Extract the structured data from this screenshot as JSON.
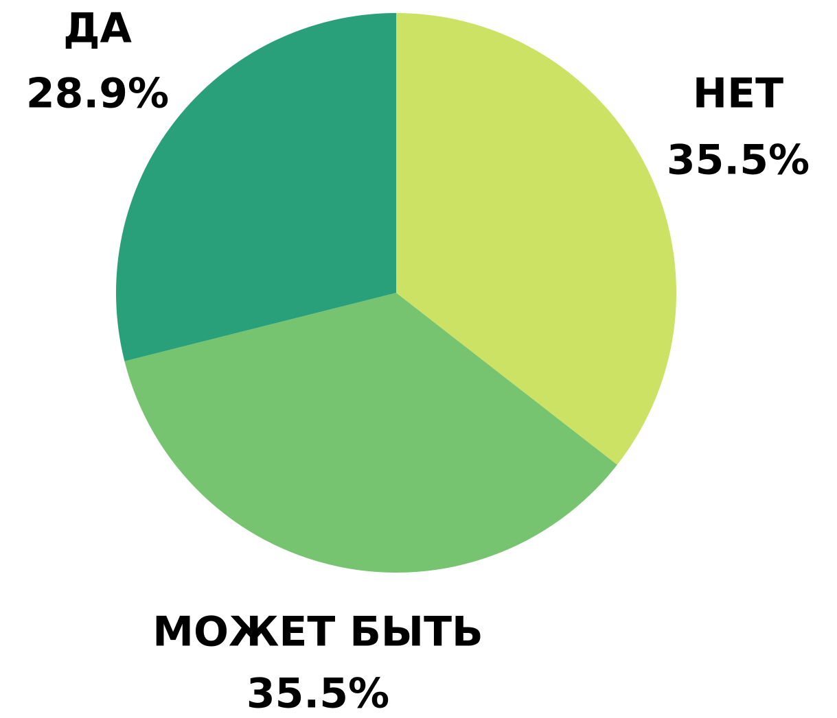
{
  "chart_data": {
    "type": "pie",
    "categories": [
      "НЕТ",
      "МОЖЕТ БЫТЬ",
      "ДА"
    ],
    "values": [
      35.5,
      35.5,
      28.9
    ],
    "value_labels": [
      "35.5%",
      "35.5%",
      "28.9%"
    ],
    "colors": [
      "#cbe265",
      "#77c470",
      "#2aa07a"
    ]
  }
}
